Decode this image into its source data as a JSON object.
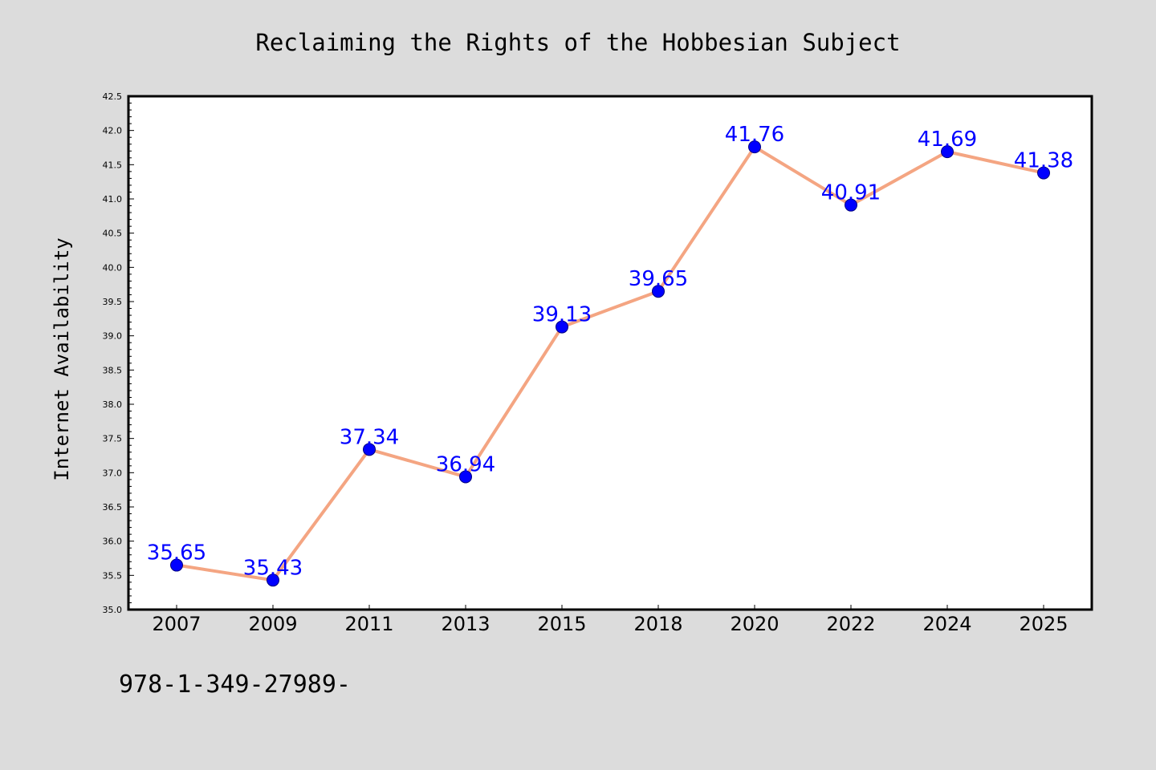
{
  "chart_data": {
    "type": "line",
    "title": "Reclaiming the Rights of the Hobbesian Subject",
    "ylabel": "Internet Availability",
    "xlabel": "",
    "categories": [
      "2007",
      "2009",
      "2011",
      "2013",
      "2015",
      "2018",
      "2020",
      "2022",
      "2024",
      "2025"
    ],
    "series": [
      {
        "values": [
          35.65,
          35.43,
          37.34,
          36.94,
          39.13,
          39.65,
          41.76,
          40.91,
          41.69,
          41.38
        ],
        "data_labels": [
          "35.65",
          "35.43",
          "37.34",
          "36.94",
          "39.13",
          "39.65",
          "41.76",
          "40.91",
          "41.69",
          "41.38"
        ]
      }
    ],
    "ylim": [
      35.0,
      42.5
    ],
    "yticks": [
      "35.0",
      "35.5",
      "36.0",
      "36.5",
      "37.0",
      "37.5",
      "38.0",
      "38.5",
      "39.0",
      "39.5",
      "40.0",
      "40.5",
      "41.0",
      "41.5",
      "42.0",
      "42.5"
    ],
    "grid": false,
    "colors": {
      "background": "#dcdcdc",
      "plot_area": "#ffffff",
      "line": "#f4a582",
      "marker": "#0000ff",
      "marker_edge": "#000080",
      "data_label": "#0000ff"
    }
  },
  "footer_text": "978-1-349-27989-"
}
